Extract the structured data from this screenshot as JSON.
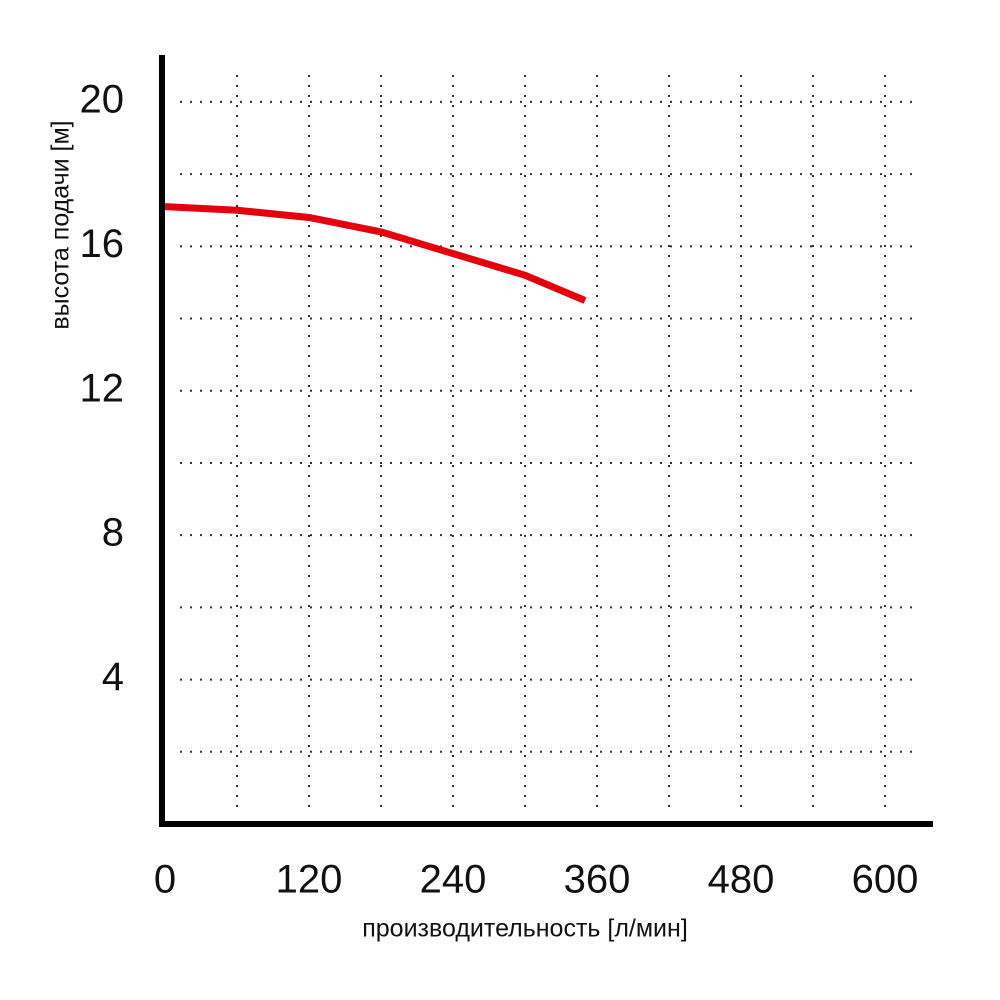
{
  "chart_data": {
    "type": "line",
    "x_label": "производительность [л/мин]",
    "y_label": "высота подачи [м]",
    "x": [
      0,
      60,
      120,
      180,
      240,
      300,
      350
    ],
    "series": [
      {
        "color": "#e3000f",
        "values": [
          17.1,
          17.0,
          16.8,
          16.4,
          15.8,
          15.2,
          14.5
        ]
      }
    ],
    "xlim": [
      0,
      640
    ],
    "ylim": [
      0,
      21.3
    ],
    "xticks": [
      0,
      120,
      240,
      360,
      480,
      600
    ],
    "yticks": [
      4,
      8,
      12,
      16,
      20
    ],
    "x_minor_ticks": [
      60,
      180,
      300,
      420,
      540
    ],
    "y_minor_ticks": [
      2,
      6,
      10,
      14,
      18
    ],
    "grid": true
  }
}
